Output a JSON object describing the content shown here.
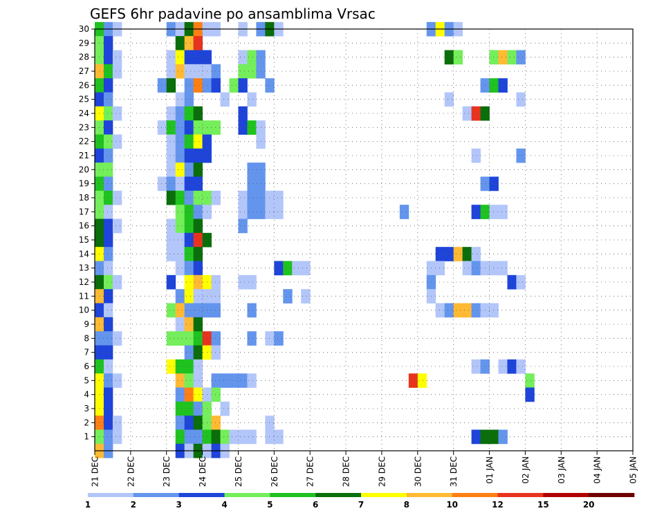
{
  "chart_data": {
    "type": "heatmap",
    "title": "GEFS 6hr padavine po ansamblima Vrsac",
    "x_ticks": [
      "21 DEC",
      "22 DEC",
      "23 DEC",
      "24 DEC",
      "25 DEC",
      "26 DEC",
      "27 DEC",
      "28 DEC",
      "29 DEC",
      "30 DEC",
      "31 DEC",
      "01 JAN",
      "02 JAN",
      "03 JAN",
      "04 JAN",
      "05 JAN"
    ],
    "x_range_days": [
      0,
      15
    ],
    "step_hours": 6,
    "y_ticks": [
      "1",
      "2",
      "3",
      "4",
      "5",
      "6",
      "7",
      "8",
      "9",
      "10",
      "11",
      "12",
      "13",
      "14",
      "15",
      "16",
      "17",
      "18",
      "19",
      "20",
      "21",
      "22",
      "23",
      "24",
      "25",
      "26",
      "27",
      "28",
      "29",
      "30"
    ],
    "y_range": [
      0,
      30
    ],
    "grid": true,
    "colorbar": {
      "labels": [
        "1",
        "2",
        "3",
        "4",
        "5",
        "6",
        "7",
        "8",
        "10",
        "12",
        "15",
        "20"
      ],
      "colors": [
        "#b3c6fa",
        "#6495ed",
        "#1e44d9",
        "#74ee5a",
        "#1fc21f",
        "#0a6e0a",
        "#ffff00",
        "#ffba33",
        "#ff7f14",
        "#e8331f",
        "#b00000",
        "#6e0000"
      ]
    },
    "cells": [
      [
        30,
        0,
        4
      ],
      [
        30,
        1,
        1
      ],
      [
        30,
        2,
        0
      ],
      [
        30,
        8,
        1
      ],
      [
        30,
        9,
        0
      ],
      [
        30,
        10,
        5
      ],
      [
        30,
        11,
        8
      ],
      [
        30,
        12,
        0
      ],
      [
        30,
        13,
        0
      ],
      [
        30,
        16,
        0
      ],
      [
        30,
        18,
        1
      ],
      [
        30,
        19,
        5
      ],
      [
        30,
        20,
        0
      ],
      [
        30,
        37,
        1
      ],
      [
        30,
        38,
        6
      ],
      [
        30,
        39,
        1
      ],
      [
        30,
        40,
        0
      ],
      [
        29,
        0,
        3
      ],
      [
        29,
        1,
        2
      ],
      [
        29,
        9,
        5
      ],
      [
        29,
        10,
        7
      ],
      [
        29,
        11,
        9
      ],
      [
        28,
        0,
        3
      ],
      [
        28,
        1,
        2
      ],
      [
        28,
        2,
        0
      ],
      [
        28,
        8,
        0
      ],
      [
        28,
        9,
        6
      ],
      [
        28,
        10,
        2
      ],
      [
        28,
        11,
        2
      ],
      [
        28,
        12,
        2
      ],
      [
        28,
        16,
        0
      ],
      [
        28,
        17,
        3
      ],
      [
        28,
        18,
        1
      ],
      [
        28,
        39,
        5
      ],
      [
        28,
        40,
        3
      ],
      [
        28,
        44,
        3
      ],
      [
        28,
        45,
        7
      ],
      [
        28,
        46,
        3
      ],
      [
        28,
        47,
        1
      ],
      [
        27,
        0,
        7
      ],
      [
        27,
        1,
        4
      ],
      [
        27,
        2,
        0
      ],
      [
        27,
        8,
        0
      ],
      [
        27,
        9,
        7
      ],
      [
        27,
        10,
        0
      ],
      [
        27,
        11,
        0
      ],
      [
        27,
        12,
        0
      ],
      [
        27,
        13,
        1
      ],
      [
        27,
        16,
        3
      ],
      [
        27,
        17,
        3
      ],
      [
        27,
        18,
        1
      ],
      [
        26,
        0,
        4
      ],
      [
        26,
        1,
        2
      ],
      [
        26,
        7,
        1
      ],
      [
        26,
        8,
        5
      ],
      [
        26,
        10,
        1
      ],
      [
        26,
        11,
        8
      ],
      [
        26,
        12,
        1
      ],
      [
        26,
        13,
        2
      ],
      [
        26,
        15,
        3
      ],
      [
        26,
        16,
        2
      ],
      [
        26,
        19,
        1
      ],
      [
        26,
        43,
        1
      ],
      [
        26,
        44,
        4
      ],
      [
        26,
        45,
        2
      ],
      [
        25,
        0,
        2
      ],
      [
        25,
        1,
        1
      ],
      [
        25,
        9,
        0
      ],
      [
        25,
        10,
        1
      ],
      [
        25,
        14,
        0
      ],
      [
        25,
        17,
        0
      ],
      [
        25,
        39,
        0
      ],
      [
        25,
        47,
        0
      ],
      [
        24,
        0,
        6
      ],
      [
        24,
        1,
        3
      ],
      [
        24,
        2,
        0
      ],
      [
        24,
        8,
        0
      ],
      [
        24,
        9,
        1
      ],
      [
        24,
        10,
        4
      ],
      [
        24,
        11,
        5
      ],
      [
        24,
        16,
        2
      ],
      [
        24,
        41,
        0
      ],
      [
        24,
        42,
        9
      ],
      [
        24,
        43,
        5
      ],
      [
        23,
        0,
        3
      ],
      [
        23,
        1,
        2
      ],
      [
        23,
        7,
        0
      ],
      [
        23,
        8,
        4
      ],
      [
        23,
        9,
        1
      ],
      [
        23,
        10,
        2
      ],
      [
        23,
        11,
        3
      ],
      [
        23,
        12,
        3
      ],
      [
        23,
        13,
        3
      ],
      [
        23,
        16,
        2
      ],
      [
        23,
        17,
        4
      ],
      [
        23,
        18,
        0
      ],
      [
        22,
        0,
        4
      ],
      [
        22,
        1,
        3
      ],
      [
        22,
        2,
        0
      ],
      [
        22,
        8,
        0
      ],
      [
        22,
        9,
        1
      ],
      [
        22,
        10,
        4
      ],
      [
        22,
        11,
        6
      ],
      [
        22,
        12,
        2
      ],
      [
        22,
        18,
        0
      ],
      [
        21,
        0,
        2
      ],
      [
        21,
        1,
        1
      ],
      [
        21,
        8,
        0
      ],
      [
        21,
        9,
        1
      ],
      [
        21,
        10,
        2
      ],
      [
        21,
        11,
        2
      ],
      [
        21,
        12,
        2
      ],
      [
        21,
        42,
        0
      ],
      [
        21,
        47,
        1
      ],
      [
        20,
        0,
        3
      ],
      [
        20,
        1,
        3
      ],
      [
        20,
        8,
        0
      ],
      [
        20,
        9,
        6
      ],
      [
        20,
        10,
        1
      ],
      [
        20,
        11,
        5
      ],
      [
        20,
        17,
        1
      ],
      [
        20,
        18,
        1
      ],
      [
        19,
        0,
        4
      ],
      [
        19,
        1,
        1
      ],
      [
        19,
        7,
        0
      ],
      [
        19,
        8,
        1
      ],
      [
        19,
        9,
        0
      ],
      [
        19,
        10,
        2
      ],
      [
        19,
        11,
        2
      ],
      [
        19,
        17,
        1
      ],
      [
        19,
        18,
        1
      ],
      [
        19,
        43,
        1
      ],
      [
        19,
        44,
        2
      ],
      [
        18,
        0,
        3
      ],
      [
        18,
        1,
        4
      ],
      [
        18,
        2,
        0
      ],
      [
        18,
        8,
        5
      ],
      [
        18,
        9,
        4
      ],
      [
        18,
        10,
        1
      ],
      [
        18,
        11,
        3
      ],
      [
        18,
        12,
        3
      ],
      [
        18,
        13,
        0
      ],
      [
        18,
        16,
        0
      ],
      [
        18,
        17,
        1
      ],
      [
        18,
        18,
        1
      ],
      [
        18,
        19,
        0
      ],
      [
        18,
        20,
        0
      ],
      [
        17,
        0,
        3
      ],
      [
        17,
        1,
        0
      ],
      [
        17,
        9,
        3
      ],
      [
        17,
        10,
        4
      ],
      [
        17,
        11,
        1
      ],
      [
        17,
        12,
        0
      ],
      [
        17,
        16,
        0
      ],
      [
        17,
        17,
        1
      ],
      [
        17,
        18,
        1
      ],
      [
        17,
        19,
        0
      ],
      [
        17,
        20,
        0
      ],
      [
        17,
        34,
        1
      ],
      [
        17,
        42,
        2
      ],
      [
        17,
        43,
        4
      ],
      [
        17,
        44,
        0
      ],
      [
        17,
        45,
        0
      ],
      [
        16,
        0,
        5
      ],
      [
        16,
        1,
        2
      ],
      [
        16,
        2,
        0
      ],
      [
        16,
        8,
        0
      ],
      [
        16,
        9,
        3
      ],
      [
        16,
        10,
        4
      ],
      [
        16,
        11,
        5
      ],
      [
        16,
        16,
        1
      ],
      [
        15,
        0,
        5
      ],
      [
        15,
        1,
        2
      ],
      [
        15,
        8,
        0
      ],
      [
        15,
        9,
        0
      ],
      [
        15,
        10,
        2
      ],
      [
        15,
        11,
        9
      ],
      [
        15,
        12,
        5
      ],
      [
        14,
        0,
        6
      ],
      [
        14,
        1,
        1
      ],
      [
        14,
        8,
        0
      ],
      [
        14,
        9,
        0
      ],
      [
        14,
        10,
        4
      ],
      [
        14,
        11,
        5
      ],
      [
        14,
        38,
        2
      ],
      [
        14,
        39,
        2
      ],
      [
        14,
        40,
        7
      ],
      [
        14,
        41,
        5
      ],
      [
        14,
        42,
        0
      ],
      [
        13,
        0,
        1
      ],
      [
        13,
        1,
        0
      ],
      [
        13,
        9,
        0
      ],
      [
        13,
        10,
        1
      ],
      [
        13,
        11,
        2
      ],
      [
        13,
        20,
        2
      ],
      [
        13,
        21,
        4
      ],
      [
        13,
        22,
        0
      ],
      [
        13,
        23,
        0
      ],
      [
        13,
        37,
        0
      ],
      [
        13,
        38,
        0
      ],
      [
        13,
        41,
        0
      ],
      [
        13,
        42,
        1
      ],
      [
        13,
        43,
        0
      ],
      [
        13,
        44,
        0
      ],
      [
        13,
        45,
        0
      ],
      [
        12,
        0,
        5
      ],
      [
        12,
        1,
        3
      ],
      [
        12,
        2,
        0
      ],
      [
        12,
        8,
        2
      ],
      [
        12,
        10,
        6
      ],
      [
        12,
        11,
        7
      ],
      [
        12,
        12,
        6
      ],
      [
        12,
        13,
        0
      ],
      [
        12,
        16,
        0
      ],
      [
        12,
        17,
        0
      ],
      [
        12,
        37,
        1
      ],
      [
        12,
        46,
        2
      ],
      [
        12,
        47,
        0
      ],
      [
        11,
        0,
        7
      ],
      [
        11,
        1,
        2
      ],
      [
        11,
        9,
        1
      ],
      [
        11,
        10,
        6
      ],
      [
        11,
        11,
        0
      ],
      [
        11,
        12,
        0
      ],
      [
        11,
        13,
        0
      ],
      [
        11,
        21,
        1
      ],
      [
        11,
        23,
        0
      ],
      [
        11,
        37,
        0
      ],
      [
        10,
        0,
        2
      ],
      [
        10,
        1,
        0
      ],
      [
        10,
        8,
        3
      ],
      [
        10,
        9,
        7
      ],
      [
        10,
        10,
        1
      ],
      [
        10,
        11,
        1
      ],
      [
        10,
        12,
        1
      ],
      [
        10,
        13,
        1
      ],
      [
        10,
        17,
        1
      ],
      [
        10,
        38,
        0
      ],
      [
        10,
        39,
        1
      ],
      [
        10,
        40,
        7
      ],
      [
        10,
        41,
        7
      ],
      [
        10,
        42,
        1
      ],
      [
        10,
        43,
        0
      ],
      [
        10,
        44,
        0
      ],
      [
        9,
        0,
        7
      ],
      [
        9,
        1,
        2
      ],
      [
        9,
        9,
        0
      ],
      [
        9,
        10,
        7
      ],
      [
        9,
        11,
        5
      ],
      [
        8,
        0,
        1
      ],
      [
        8,
        1,
        1
      ],
      [
        8,
        2,
        0
      ],
      [
        8,
        8,
        3
      ],
      [
        8,
        9,
        3
      ],
      [
        8,
        10,
        3
      ],
      [
        8,
        11,
        4
      ],
      [
        8,
        12,
        9
      ],
      [
        8,
        13,
        1
      ],
      [
        8,
        17,
        1
      ],
      [
        8,
        19,
        0
      ],
      [
        8,
        20,
        1
      ],
      [
        7,
        0,
        2
      ],
      [
        7,
        1,
        2
      ],
      [
        7,
        10,
        1
      ],
      [
        7,
        11,
        5
      ],
      [
        7,
        12,
        6
      ],
      [
        7,
        13,
        0
      ],
      [
        6,
        0,
        4
      ],
      [
        6,
        1,
        0
      ],
      [
        6,
        8,
        6
      ],
      [
        6,
        9,
        4
      ],
      [
        6,
        10,
        4
      ],
      [
        6,
        11,
        0
      ],
      [
        6,
        42,
        0
      ],
      [
        6,
        43,
        1
      ],
      [
        6,
        45,
        0
      ],
      [
        6,
        46,
        2
      ],
      [
        6,
        47,
        0
      ],
      [
        5,
        0,
        6
      ],
      [
        5,
        1,
        1
      ],
      [
        5,
        2,
        0
      ],
      [
        5,
        9,
        7
      ],
      [
        5,
        10,
        3
      ],
      [
        5,
        11,
        0
      ],
      [
        5,
        13,
        1
      ],
      [
        5,
        14,
        1
      ],
      [
        5,
        15,
        1
      ],
      [
        5,
        16,
        1
      ],
      [
        5,
        17,
        0
      ],
      [
        5,
        35,
        9
      ],
      [
        5,
        36,
        6
      ],
      [
        5,
        48,
        3
      ],
      [
        4,
        0,
        6
      ],
      [
        4,
        1,
        2
      ],
      [
        4,
        9,
        1
      ],
      [
        4,
        10,
        8
      ],
      [
        4,
        11,
        6
      ],
      [
        4,
        12,
        0
      ],
      [
        4,
        13,
        3
      ],
      [
        4,
        48,
        2
      ],
      [
        3,
        0,
        6
      ],
      [
        3,
        1,
        2
      ],
      [
        3,
        9,
        4
      ],
      [
        3,
        10,
        4
      ],
      [
        3,
        11,
        1
      ],
      [
        3,
        12,
        3
      ],
      [
        3,
        14,
        0
      ],
      [
        2,
        0,
        8
      ],
      [
        2,
        1,
        2
      ],
      [
        2,
        2,
        0
      ],
      [
        2,
        9,
        1
      ],
      [
        2,
        10,
        2
      ],
      [
        2,
        11,
        5
      ],
      [
        2,
        12,
        3
      ],
      [
        2,
        13,
        7
      ],
      [
        2,
        19,
        0
      ],
      [
        1,
        0,
        3
      ],
      [
        1,
        1,
        1
      ],
      [
        1,
        2,
        0
      ],
      [
        1,
        9,
        4
      ],
      [
        1,
        10,
        1
      ],
      [
        1,
        11,
        1
      ],
      [
        1,
        12,
        4
      ],
      [
        1,
        13,
        5
      ],
      [
        1,
        14,
        3
      ],
      [
        1,
        15,
        0
      ],
      [
        1,
        16,
        0
      ],
      [
        1,
        17,
        0
      ],
      [
        1,
        19,
        0
      ],
      [
        1,
        20,
        0
      ],
      [
        1,
        42,
        2
      ],
      [
        1,
        43,
        5
      ],
      [
        1,
        44,
        5
      ],
      [
        1,
        45,
        1
      ],
      [
        0,
        0,
        7
      ],
      [
        0,
        1,
        1
      ],
      [
        0,
        9,
        2
      ],
      [
        0,
        10,
        0
      ],
      [
        0,
        11,
        5
      ],
      [
        0,
        12,
        0
      ],
      [
        0,
        13,
        2
      ],
      [
        0,
        14,
        0
      ]
    ]
  }
}
